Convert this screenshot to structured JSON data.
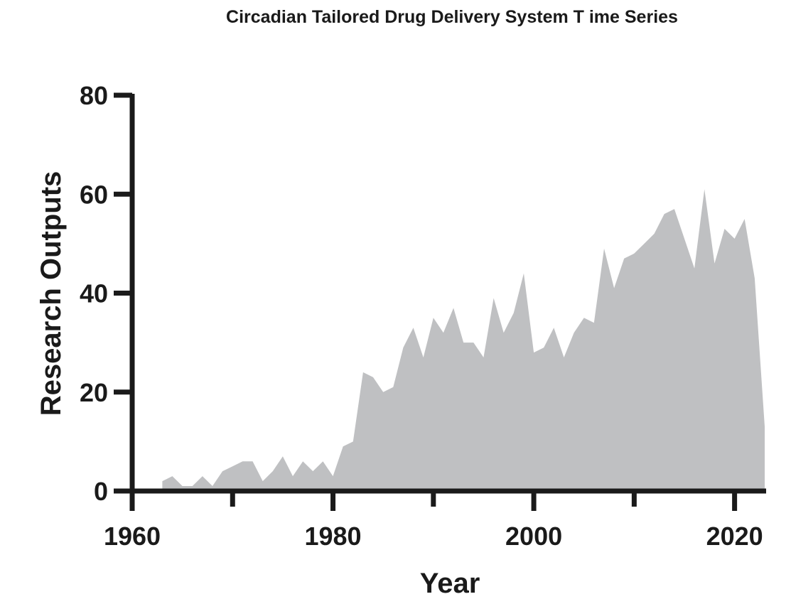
{
  "chart_data": {
    "type": "area",
    "title": "Circadian Tailored Drug Delivery System T ime Series",
    "xlabel": "Year",
    "ylabel": "Research Outputs",
    "xlim": [
      1960,
      2023
    ],
    "ylim": [
      0,
      80
    ],
    "x_ticks": [
      1960,
      1980,
      2000,
      2020
    ],
    "y_ticks": [
      0,
      20,
      40,
      60,
      80
    ],
    "grid": false,
    "legend": "none",
    "fill_color": "#bfc0c2",
    "axis_color": "#1a1a1a",
    "x": [
      1963,
      1964,
      1965,
      1966,
      1967,
      1968,
      1969,
      1970,
      1971,
      1972,
      1973,
      1974,
      1975,
      1976,
      1977,
      1978,
      1979,
      1980,
      1981,
      1982,
      1983,
      1984,
      1985,
      1986,
      1987,
      1988,
      1989,
      1990,
      1991,
      1992,
      1993,
      1994,
      1995,
      1996,
      1997,
      1998,
      1999,
      2000,
      2001,
      2002,
      2003,
      2004,
      2005,
      2006,
      2007,
      2008,
      2009,
      2010,
      2011,
      2012,
      2013,
      2014,
      2015,
      2016,
      2017,
      2018,
      2019,
      2020,
      2021,
      2022,
      2023
    ],
    "values": [
      2,
      3,
      1,
      1,
      3,
      1,
      4,
      5,
      6,
      6,
      2,
      4,
      7,
      3,
      6,
      4,
      6,
      3,
      9,
      10,
      24,
      23,
      20,
      21,
      29,
      33,
      27,
      35,
      32,
      37,
      30,
      30,
      27,
      39,
      32,
      36,
      44,
      28,
      29,
      33,
      27,
      32,
      35,
      34,
      49,
      41,
      47,
      48,
      50,
      52,
      56,
      57,
      51,
      45,
      61,
      46,
      53,
      51,
      55,
      43,
      13
    ]
  }
}
